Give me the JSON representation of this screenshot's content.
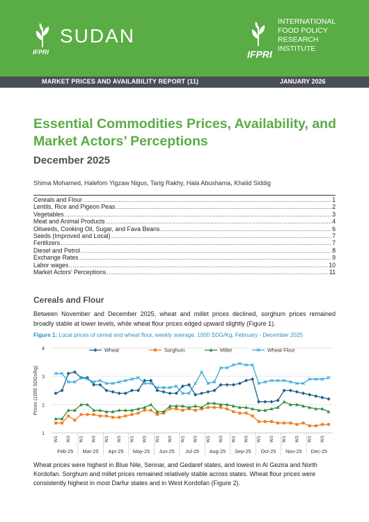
{
  "header": {
    "country": "SUDAN",
    "ifpri_short": "IFPRI",
    "org_lines": [
      "INTERNATIONAL",
      "FOOD POLICY",
      "RESEARCH",
      "INSTITUTE"
    ],
    "report_label": "MARKET PRICES AND AVAILABILITY REPORT (11)",
    "date": "JANUARY 2026",
    "colors": {
      "brand_green": "#5aac45",
      "bar_grey": "#4a4f55"
    }
  },
  "title": "Essential Commodities Prices, Availability, and Market Actors’ Perceptions",
  "subtitle": "December 2025",
  "authors": "Shima Mohamed, Halefom Yigzaw Nigus, Tarig Rakhy, Hala Abushama, Khalid Siddig",
  "toc": [
    {
      "label": "Cereals and Flour",
      "page": "1"
    },
    {
      "label": "Lentils, Rice and Pigeon Peas",
      "page": "2"
    },
    {
      "label": "Vegetables",
      "page": "3"
    },
    {
      "label": "Meat and Animal Products",
      "page": "4"
    },
    {
      "label": "Oilseeds, Cooking Oil, Sugar, and Fava Beans",
      "page": "6"
    },
    {
      "label": "Seeds (Improved and Local)",
      "page": "7"
    },
    {
      "label": "Fertilizers",
      "page": "7"
    },
    {
      "label": "Diesel and Petrol",
      "page": "8"
    },
    {
      "label": "Exchange Rates",
      "page": "9"
    },
    {
      "label": "Labor wages",
      "page": "10"
    },
    {
      "label": "Market Actors’ Perceptions",
      "page": "11"
    }
  ],
  "section": {
    "heading": "Cereals and Flour",
    "para1": "Between November and December 2025, wheat and millet prices declined, sorghum prices remained broadly stable at lower levels, while wheat flour prices edged upward slightly (Figure 1).",
    "fig_label": "Figure 1:",
    "fig_caption": "Local prices of cereal and wheat flour, weekly average, 1000 SDG/Kg, February - December 2025",
    "para2": "Wheat prices were highest in Blue Nile, Sennar, and Gedaref states, and lowest in Al Gezira and North Kordofan. Sorghum and millet prices remained relatively stable across states. Wheat flour prices were consistently highest in most Darfur states and in West Kordofan (Figure 2)."
  },
  "chart_data": {
    "type": "line",
    "title": "",
    "ylabel": "Prices (1000 SDGs/kg)",
    "xlabel": "",
    "ylim": [
      1,
      4
    ],
    "yticks": [
      1,
      2,
      3,
      4
    ],
    "grid": true,
    "legend_position": "top",
    "months": [
      "Feb-25",
      "Mar-25",
      "Apr-25",
      "May-25",
      "Jun-25",
      "Jul-25",
      "Aug-25",
      "Sep-25",
      "Oct-25",
      "Nov-25",
      "Dec-25"
    ],
    "week_labels": [
      "W1",
      "W3"
    ],
    "x_count": 44,
    "series": [
      {
        "name": "Wheat",
        "color": "#1f5f8b",
        "marker": "diamond",
        "values": [
          2.4,
          2.5,
          3.1,
          3.15,
          2.95,
          2.95,
          2.7,
          2.7,
          2.5,
          2.45,
          2.4,
          2.4,
          2.5,
          2.5,
          2.85,
          2.85,
          2.5,
          2.45,
          2.4,
          2.4,
          2.65,
          2.7,
          2.35,
          2.4,
          2.45,
          2.5,
          2.7,
          2.7,
          2.7,
          2.75,
          2.85,
          2.9,
          2.1,
          2.1,
          2.1,
          2.15,
          2.5,
          2.5,
          2.45,
          2.4,
          2.35,
          2.3,
          2.25,
          2.2
        ]
      },
      {
        "name": "Sorghum",
        "color": "#f07f1f",
        "marker": "square",
        "values": [
          1.35,
          1.35,
          1.6,
          1.45,
          1.65,
          1.65,
          1.65,
          1.6,
          1.6,
          1.55,
          1.55,
          1.6,
          1.65,
          1.7,
          1.8,
          1.8,
          1.65,
          1.7,
          1.85,
          1.85,
          1.8,
          1.85,
          1.8,
          1.85,
          1.9,
          1.9,
          1.9,
          1.85,
          1.75,
          1.7,
          1.7,
          1.6,
          1.4,
          1.4,
          1.4,
          1.35,
          1.35,
          1.35,
          1.3,
          1.35,
          1.25,
          1.25,
          1.3,
          1.3
        ]
      },
      {
        "name": "Millet",
        "color": "#2e8b3e",
        "marker": "triangle",
        "values": [
          1.5,
          1.5,
          1.8,
          1.8,
          2.0,
          2.0,
          1.8,
          1.8,
          1.75,
          1.75,
          1.8,
          1.8,
          1.8,
          1.85,
          1.9,
          2.0,
          1.75,
          1.75,
          1.95,
          1.95,
          1.95,
          1.9,
          1.95,
          1.9,
          2.05,
          2.05,
          2.0,
          2.0,
          1.95,
          1.9,
          1.9,
          1.85,
          1.8,
          1.8,
          1.85,
          1.9,
          2.1,
          2.0,
          2.0,
          1.95,
          1.9,
          1.85,
          1.85,
          1.75
        ]
      },
      {
        "name": "Wheat Flour",
        "color": "#36a9dc",
        "marker": "x",
        "values": [
          3.1,
          3.1,
          2.8,
          2.8,
          2.95,
          2.9,
          2.8,
          2.85,
          2.75,
          2.75,
          2.8,
          2.85,
          2.9,
          2.95,
          2.75,
          2.75,
          2.6,
          2.6,
          2.6,
          2.65,
          2.4,
          2.4,
          2.75,
          3.15,
          2.75,
          2.8,
          3.3,
          3.3,
          3.4,
          3.45,
          3.4,
          3.4,
          2.75,
          2.8,
          2.85,
          2.85,
          2.85,
          2.8,
          2.75,
          2.75,
          2.9,
          2.9,
          2.9,
          2.95
        ]
      }
    ]
  }
}
